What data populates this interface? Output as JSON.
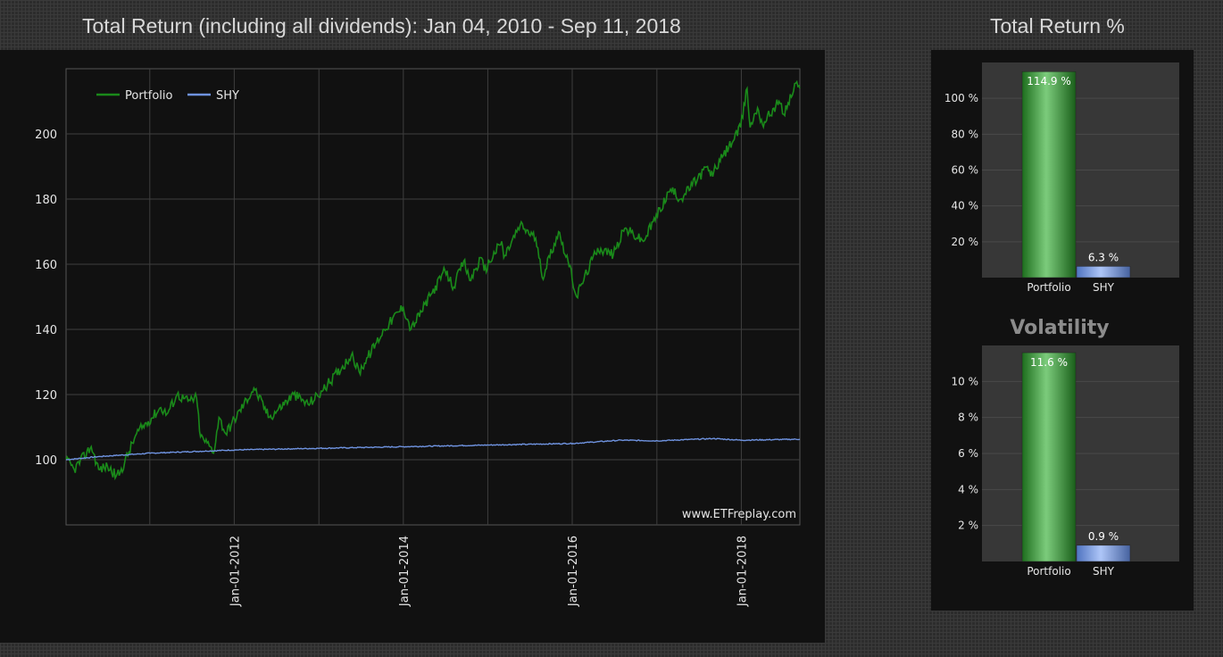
{
  "page": {
    "title": "Total Return (including all dividends): Jan 04, 2010 - Sep 11, 2018",
    "return_title": "Total Return %",
    "volatility_title": "Volatility",
    "watermark": "www.ETFreplay.com"
  },
  "colors": {
    "portfolio": "#1a8a1a",
    "shy": "#6f93e0",
    "bar_green": "#3fa33f",
    "bar_blue": "#7aa2ee"
  },
  "chart_data": [
    {
      "type": "line",
      "title": "Total Return (including all dividends): Jan 04, 2010 - Sep 11, 2018",
      "xlabel": "",
      "ylabel": "",
      "xlim": [
        "2010-01-04",
        "2018-09-11"
      ],
      "ylim": [
        80,
        220
      ],
      "yticks": [
        100,
        120,
        140,
        160,
        180,
        200
      ],
      "xticks": [
        "Jan-01-2012",
        "Jan-01-2014",
        "Jan-01-2016",
        "Jan-01-2018"
      ],
      "grid": true,
      "legend": "top-left",
      "series": [
        {
          "name": "Portfolio",
          "x": [
            "2010-01-04",
            "2010-02-08",
            "2010-04-23",
            "2010-05-25",
            "2010-07-02",
            "2010-08-09",
            "2010-08-26",
            "2010-11-05",
            "2011-02-18",
            "2011-03-16",
            "2011-04-29",
            "2011-06-15",
            "2011-07-22",
            "2011-08-08",
            "2011-09-20",
            "2011-10-03",
            "2011-10-27",
            "2011-11-25",
            "2012-03-26",
            "2012-06-01",
            "2012-09-14",
            "2012-11-15",
            "2013-01-15",
            "2013-05-21",
            "2013-06-24",
            "2013-10-10",
            "2013-12-31",
            "2014-02-03",
            "2014-06-30",
            "2014-08-07",
            "2014-09-19",
            "2014-10-15",
            "2014-12-05",
            "2014-12-16",
            "2015-03-02",
            "2015-03-11",
            "2015-05-21",
            "2015-07-27",
            "2015-08-24",
            "2015-11-03",
            "2015-12-14",
            "2016-01-20",
            "2016-02-11",
            "2016-04-20",
            "2016-06-27",
            "2016-08-15",
            "2016-11-03",
            "2017-03-01",
            "2017-04-13",
            "2017-08-08",
            "2017-08-21",
            "2017-11-08",
            "2017-12-29",
            "2018-01-26",
            "2018-02-08",
            "2018-03-12",
            "2018-04-02",
            "2018-06-13",
            "2018-07-03",
            "2018-08-29",
            "2018-09-11"
          ],
          "values": [
            100,
            97,
            104,
            97,
            98,
            95,
            96,
            108,
            116,
            114,
            120,
            118,
            119,
            107,
            104,
            102,
            113,
            108,
            122,
            113,
            120,
            117,
            121,
            132,
            127,
            140,
            147,
            140,
            158,
            153,
            161,
            155,
            162,
            158,
            167,
            162,
            172,
            168,
            156,
            170,
            161,
            150,
            154,
            165,
            163,
            171,
            167,
            183,
            180,
            190,
            187,
            196,
            202,
            214,
            202,
            208,
            203,
            210,
            206,
            216,
            214
          ]
        },
        {
          "name": "SHY",
          "x": [
            "2010-01-04",
            "2010-06-01",
            "2011-01-03",
            "2012-01-03",
            "2013-01-02",
            "2014-01-02",
            "2015-01-02",
            "2016-01-04",
            "2016-08-01",
            "2017-01-03",
            "2017-09-01",
            "2018-01-02",
            "2018-09-11"
          ],
          "values": [
            100,
            101,
            102,
            103,
            103.5,
            104,
            104.5,
            105,
            106,
            105.8,
            106.5,
            106,
            106.3
          ]
        }
      ]
    },
    {
      "type": "bar",
      "title": "Total Return %",
      "categories": [
        "Portfolio",
        "SHY"
      ],
      "values": [
        114.9,
        6.3
      ],
      "labels": [
        "114.9 %",
        "6.3 %"
      ],
      "ylim": [
        0,
        120
      ],
      "yticks": [
        "20 %",
        "40 %",
        "60 %",
        "80 %",
        "100 %"
      ]
    },
    {
      "type": "bar",
      "title": "Volatility",
      "categories": [
        "Portfolio",
        "SHY"
      ],
      "values": [
        11.6,
        0.9
      ],
      "labels": [
        "11.6 %",
        "0.9 %"
      ],
      "ylim": [
        0,
        12
      ],
      "yticks": [
        "2 %",
        "4 %",
        "6 %",
        "8 %",
        "10 %"
      ]
    }
  ]
}
